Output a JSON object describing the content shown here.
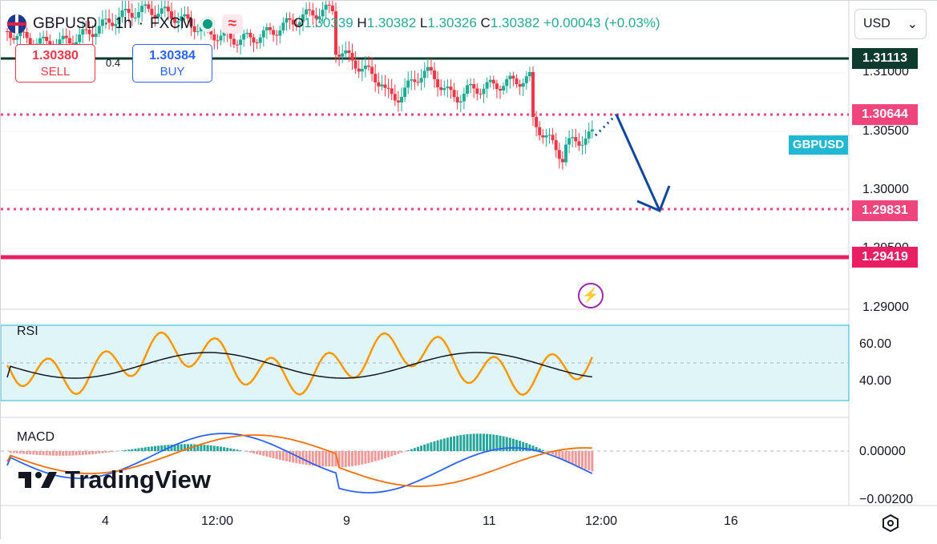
{
  "symbol": {
    "name": "GBPUSD",
    "separator": "·",
    "interval": "1h",
    "exchange": "FXCM"
  },
  "ohlc": {
    "open_label": "O",
    "open": "1.30339",
    "high_label": "H",
    "high": "1.30382",
    "low_label": "L",
    "low": "1.30326",
    "close_label": "C",
    "close": "1.30382",
    "change": "+0.00043",
    "change_percent": "(+0.03%)"
  },
  "trade": {
    "sell_price": "1.30380",
    "sell_label": "SELL",
    "spread": "0.4",
    "buy_price": "1.30384",
    "buy_label": "BUY"
  },
  "currency": {
    "selected": "USD"
  },
  "price_axis": {
    "ticks": [
      "1.31000",
      "1.30500",
      "1.30000",
      "1.29500",
      "1.29000"
    ]
  },
  "price_tags": [
    {
      "label": "1.31113",
      "color": "#0d3b2e"
    },
    {
      "label": "1.30644",
      "color": "#f0457c"
    },
    {
      "label": "1.29831",
      "color": "#f0457c"
    },
    {
      "label": "1.29419",
      "color": "#e91e63"
    }
  ],
  "symbol_tag": "GBPUSD",
  "rsi": {
    "label": "RSI",
    "ticks": [
      "60.00",
      "40.00"
    ]
  },
  "macd": {
    "label": "MACD",
    "ticks": [
      "0.00000",
      "−0.00200"
    ]
  },
  "time_axis": [
    "4",
    "12:00",
    "9",
    "11",
    "12:00",
    "16"
  ],
  "branding": "TradingView",
  "icons": {
    "flash": "lightning-icon",
    "settings": "gear-icon",
    "dropdown": "chevron-down-icon"
  },
  "colors": {
    "up": "#22ab94",
    "down": "#f23645",
    "rsi": "#ff9800",
    "macd_signal": "#ff6d00",
    "macd_line": "#2962ff",
    "arrow": "#0d47a1"
  }
}
